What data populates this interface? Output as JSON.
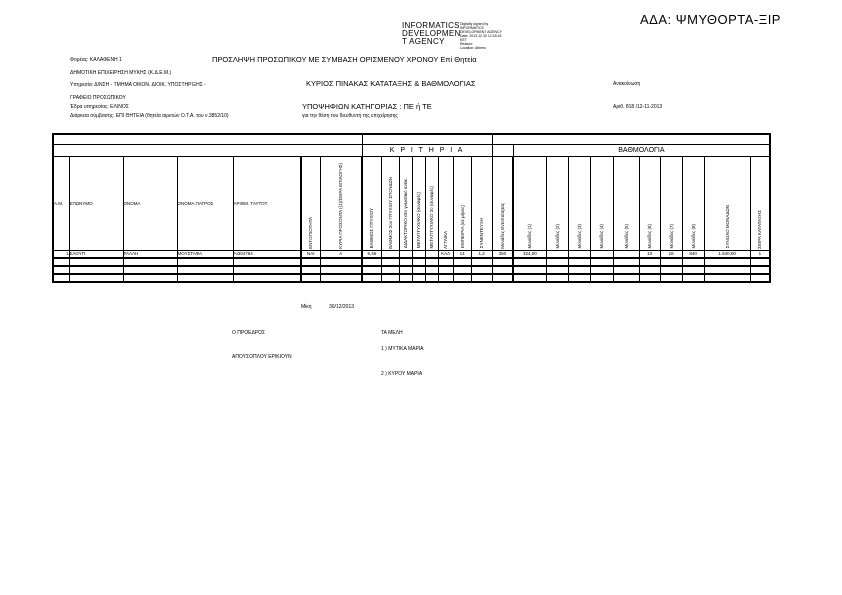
{
  "ada": "ΑΔΑ: ΨΜΥΘΟΡΤΑ-ΞΙΡ",
  "logo": {
    "lines": [
      "INFORMATICS",
      "DEVELOPMEN",
      "T AGENCY"
    ],
    "signature_lines": [
      "Digitally signed by",
      "INFORMATICS",
      "DEVELOPMENT AGENCY",
      "Date: 2013.12.30 12:18:18",
      "EET",
      "Reason:",
      "Location: Athens"
    ]
  },
  "header": {
    "foreas": "Φορέας: ΚΑΛΑΦΕΝΗ 1",
    "dimotiki": "ΔΗΜΟΤΙΚΗ ΕΠΙΧΕΙΡΗΣΗ ΜΥΚΗΣ (Κ.Δ.Ε.Μ.)",
    "ypiresia": "Υπηρεσία: Δ/ΝΣΗ - ΤΜΗΜΑ ΟΙΚΟΝ. ΔΙΟΙΚ. ΥΠΟΣΤΗΡΙΞΗΣ -",
    "grafeio": "ΓΡΑΦΕΙΟ ΠΡΟΣΩΠΙΚΟΥ",
    "edra": "Έδρα υπηρεσίας: ΕΛΙΝΟΣ",
    "diarkeia": "Διάρκεια σύμβασης: ΕΠΙ ΘΗΤΕΙΑ (θητεία αιρετών Ο.Τ.Α. του ν.3852/10)",
    "title": "ΠΡΟΣΛΗΨΗ ΠΡΟΣΩΠΙΚΟΥ ΜΕ ΣΥΜΒΑΣΗ ΟΡΙΣΜΕΝΟΥ ΧΡΟΝΟΥ Επί Θητεία",
    "subtitle": "ΚΥΡΙΟΣ ΠΙΝΑΚΑΣ ΚΑΤΑΤΑΞΗΣ & ΒΑΘΜΟΛΟΓΙΑΣ",
    "category": "ΥΠΟΨΗΦΙΩΝ ΚΑΤΗΓΟΡΙΑΣ : ΠΕ ή ΤΕ",
    "for_position": "για την θέση του διευθυντή της επιχείρησης",
    "anakoinosi": "Ανακοίνωση",
    "arith": "Αριθ. 818 /12-11-2013"
  },
  "table": {
    "group_criteria": "Κ Ρ Ι Τ Η Ρ Ι Α",
    "group_scores": "ΒΑΘΜΟΛΟΓΙΑ",
    "columns": [
      "Α.Μ.",
      "ΕΠΩΝΥΜΟ",
      "ΟΝΟΜΑ",
      "ΟΝΟΜΑ ΠΑΤΡΟΣ",
      "ΑΡΙΘΜ. ΤΑΥΤΟΤ.",
      "ΕΝΤΟΠΙΟΤΗΤΑ",
      "ΚΥΡΙΑ ΠΡΟΣΟΝΤΑ ((1)/ΣΕΙΡΑ ΕΠΙΛΟΓΗΣ)",
      "ΒΑΘΜΟΣ ΠΤΥΧΙΟΥ",
      "ΒΑΘΜΟΣ 2ου ΠΤΥΧΙΟΥ ΣΠΟΥΔΩΝ",
      "ΔΙΔΑΚΤΟΡΙΚΟ στο γνωστικό αντικ.",
      "ΜΕΤΑΠΤΥΧΙΑΚΟ (συναφές)",
      "ΜΕΤΑΠΤΥΧΙΑΚΟ 2ο (συναφές)",
      "ΑΓΓΛΙΚΑ",
      "ΕΜΠΕΙΡΙΑ (σε μήνες)",
      "ΣΥΝΕΝΤΕΥΞΗ",
      "Μονάδες Εντοπιότητας",
      "Μονάδες (1)",
      "Μονάδες (2)",
      "Μονάδες (3)",
      "Μονάδες (4)",
      "Μονάδες (5)",
      "Μονάδες (6)",
      "Μονάδες (7)",
      "Μονάδες (8)",
      "ΣΥΝΟΛΟ ΜΟΝΑΔΩΝ",
      "ΣΕΙΡΑ ΚΑΤΑΤΑΞΗΣ"
    ],
    "rows": [
      [
        "1",
        "ΕΛΟΥΠ",
        "ΡΑΛΛΗ",
        "ΜΟΥΣΤΑΦΑ",
        "ΑΙ304784",
        "ΝΑΙ",
        "Α",
        "6,46",
        "",
        "",
        "",
        "",
        "ΚΑΛ",
        "14",
        "1,2",
        "350",
        "324,00",
        "",
        "",
        "",
        "",
        "10",
        "16",
        "840",
        "1.540,00",
        "1"
      ],
      [
        "",
        "",
        "",
        "",
        "",
        "",
        "",
        "",
        "",
        "",
        "",
        "",
        "",
        "",
        "",
        "",
        "",
        "",
        "",
        "",
        "",
        "",
        "",
        "",
        "",
        ""
      ],
      [
        "",
        "",
        "",
        "",
        "",
        "",
        "",
        "",
        "",
        "",
        "",
        "",
        "",
        "",
        "",
        "",
        "",
        "",
        "",
        "",
        "",
        "",
        "",
        "",
        "",
        ""
      ],
      [
        "",
        "",
        "",
        "",
        "",
        "",
        "",
        "",
        "",
        "",
        "",
        "",
        "",
        "",
        "",
        "",
        "",
        "",
        "",
        "",
        "",
        "",
        "",
        "",
        "",
        ""
      ]
    ]
  },
  "footer": {
    "place_label": "Μίκη",
    "date": "30/12/2013",
    "president_label": "Ο ΠΡΟΕΔΡΟΣ",
    "president_name": "ΑΠΟΥΣΟΠΛΟΥ ΕΡΙΚΙΟΥΝ",
    "members_label": "ΤΑ ΜΕΛΗ",
    "member1": "1 ) ΜΥΤΙΚΑ ΜΑΡΙΑ",
    "member2": "2 ) ΚΥΡΟΥ ΜΑΡΙΑ"
  }
}
